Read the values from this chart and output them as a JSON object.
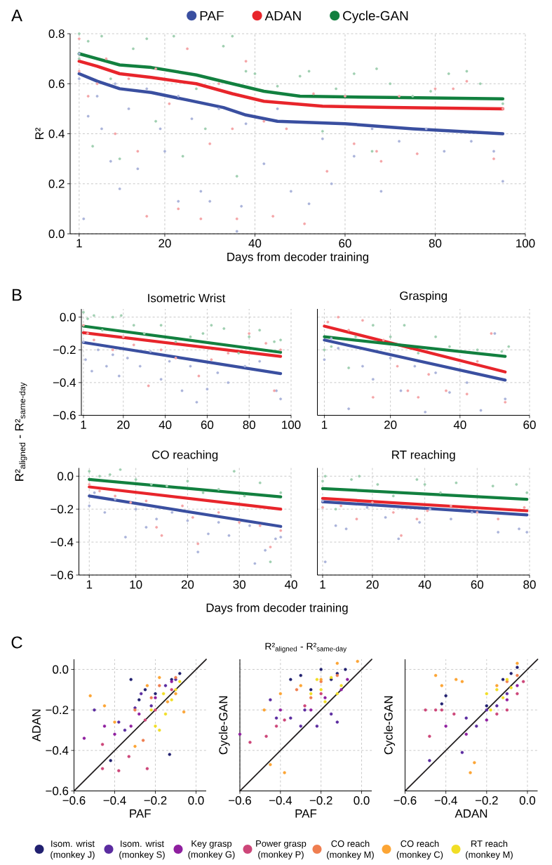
{
  "chart_data": [
    {
      "type": "line",
      "xlabel": "Days from decoder training",
      "ylabel": "R²",
      "annotations": [
        "A"
      ],
      "xlim": [
        -1,
        100
      ],
      "ylim": [
        0,
        0.8
      ],
      "xticks": [
        1,
        20,
        40,
        60,
        80,
        100
      ],
      "yticks": [
        {
          "value": 0,
          "label": "0.0"
        },
        0.2,
        0.4,
        0.6,
        0.8
      ],
      "grid": true,
      "legend": "top",
      "series": [
        {
          "type": "scatter",
          "color": "#aab3da",
          "x": [
            1,
            1,
            2,
            3,
            5,
            6,
            8,
            9,
            10,
            12,
            14,
            16,
            19,
            20,
            23,
            23,
            26,
            28,
            30,
            32,
            36,
            37,
            38,
            42,
            45,
            48,
            52,
            55,
            57,
            62,
            66,
            68,
            72,
            78,
            82,
            88,
            93,
            95
          ],
          "values": [
            0.72,
            0.62,
            0.06,
            0.47,
            0.55,
            0.42,
            0.29,
            0.6,
            0.18,
            0.5,
            0.26,
            0.58,
            0.42,
            0.33,
            0.13,
            0.55,
            0.46,
            0.17,
            0.13,
            0.5,
            0.01,
            0.11,
            0.44,
            0.28,
            0.5,
            0.17,
            0.12,
            0.38,
            0.2,
            0.31,
            0.42,
            0.17,
            0.37,
            0.42,
            0.33,
            0.37,
            0.33,
            0.21
          ]
        },
        {
          "type": "scatter",
          "color": "#f4a4a6",
          "x": [
            1,
            1,
            3,
            5,
            7,
            9,
            12,
            14,
            16,
            18,
            21,
            23,
            25,
            28,
            30,
            32,
            35,
            36,
            38,
            42,
            44,
            47,
            51,
            53,
            56,
            60,
            62,
            67,
            68,
            72,
            76,
            80,
            84,
            87,
            93,
            95
          ],
          "values": [
            0.78,
            0.65,
            0.55,
            0.6,
            0.7,
            0.4,
            0.62,
            0.33,
            0.07,
            0.66,
            0.52,
            0.1,
            0.74,
            0.06,
            0.36,
            0.6,
            0.42,
            0.06,
            0.69,
            0.45,
            0.07,
            0.42,
            0.04,
            0.56,
            0.25,
            0.55,
            0.36,
            0.33,
            0.29,
            0.55,
            0.32,
            0.58,
            0.58,
            0.61,
            0.3,
            0.5
          ]
        },
        {
          "type": "scatter",
          "color": "#9fcfb0",
          "x": [
            1,
            1,
            3,
            4,
            6,
            8,
            10,
            13,
            16,
            18,
            22,
            24,
            27,
            29,
            33,
            35,
            36,
            38,
            40,
            45,
            50,
            52,
            55,
            58,
            62,
            66,
            67,
            70,
            75,
            79,
            83,
            87,
            90,
            95
          ],
          "values": [
            0.8,
            0.7,
            0.77,
            0.35,
            0.79,
            0.62,
            0.3,
            0.74,
            0.78,
            0.45,
            0.79,
            0.31,
            0.58,
            0.42,
            0.75,
            0.79,
            0.23,
            0.65,
            0.64,
            0.59,
            0.63,
            0.65,
            0.41,
            0.58,
            0.64,
            0.33,
            0.66,
            0.6,
            0.55,
            0.57,
            0.64,
            0.65,
            0.6,
            0.52
          ]
        },
        {
          "type": "line",
          "name": "PAF",
          "color": "#3a4fa0",
          "x": [
            1,
            5,
            10,
            17,
            25,
            33,
            38,
            45,
            60,
            75,
            95
          ],
          "values": [
            0.64,
            0.61,
            0.58,
            0.565,
            0.535,
            0.505,
            0.475,
            0.45,
            0.44,
            0.42,
            0.4
          ]
        },
        {
          "type": "line",
          "name": "ADAN",
          "color": "#e8252b",
          "x": [
            1,
            5,
            10,
            17,
            27,
            35,
            42,
            55,
            70,
            95
          ],
          "values": [
            0.69,
            0.67,
            0.64,
            0.625,
            0.6,
            0.56,
            0.53,
            0.51,
            0.505,
            0.5
          ]
        },
        {
          "type": "line",
          "name": "Cycle-GAN",
          "color": "#12803f",
          "x": [
            1,
            5,
            10,
            17,
            27,
            35,
            42,
            50,
            70,
            95
          ],
          "values": [
            0.72,
            0.7,
            0.675,
            0.665,
            0.635,
            0.6,
            0.57,
            0.55,
            0.545,
            0.54
          ]
        }
      ]
    },
    {
      "type": "line",
      "title": "Isometric Wrist",
      "ylabel": "R²$_{aligned}$ - R²$_{same-day}$",
      "annotations": [
        "B"
      ],
      "xlim": [
        0,
        100
      ],
      "ylim": [
        -0.6,
        0.05
      ],
      "xticks": [
        1,
        20,
        40,
        60,
        80,
        100
      ],
      "yticks": [
        {
          "value": -0.6,
          "label": "−0.6"
        },
        {
          "value": -0.4,
          "label": "−0.4"
        },
        {
          "value": -0.2,
          "label": "−0.2"
        },
        {
          "value": 0,
          "label": "0.0"
        }
      ],
      "grid": true,
      "series": [
        {
          "type": "scatter",
          "color": "#aab3da",
          "x": [
            1,
            2,
            5,
            8,
            12,
            15,
            18,
            22,
            28,
            33,
            38,
            42,
            48,
            52,
            55,
            60,
            65,
            70,
            78,
            85,
            93,
            95
          ],
          "values": [
            -0.15,
            -0.26,
            -0.33,
            -0.2,
            -0.3,
            -0.23,
            -0.36,
            -0.25,
            -0.3,
            -0.21,
            -0.38,
            -0.27,
            -0.45,
            -0.3,
            -0.52,
            -0.44,
            -0.34,
            -0.4,
            -0.3,
            -0.27,
            -0.45,
            -0.5
          ]
        },
        {
          "type": "scatter",
          "color": "#f4a4a6",
          "x": [
            1,
            3,
            6,
            15,
            20,
            25,
            32,
            38,
            45,
            56,
            62,
            70,
            80,
            88,
            92,
            95
          ],
          "values": [
            -0.05,
            -0.1,
            -0.14,
            -0.2,
            -0.12,
            -0.17,
            -0.42,
            -0.2,
            -0.25,
            -0.36,
            -0.26,
            -0.22,
            -0.1,
            -0.16,
            -0.45,
            -0.2
          ]
        },
        {
          "type": "scatter",
          "color": "#9fcfb0",
          "x": [
            1,
            3,
            6,
            10,
            15,
            19,
            25,
            30,
            38,
            45,
            52,
            58,
            62,
            68,
            75,
            80,
            85,
            92,
            95
          ],
          "values": [
            0.03,
            -0.01,
            0.01,
            -0.08,
            0,
            0.01,
            -0.05,
            -0.1,
            -0.05,
            -0.15,
            -0.12,
            -0.1,
            -0.05,
            -0.07,
            -0.22,
            -0.12,
            -0.08,
            -0.15,
            -0.14
          ]
        },
        {
          "type": "line",
          "color": "#3a4fa0",
          "x": [
            1,
            95
          ],
          "values": [
            -0.155,
            -0.345
          ]
        },
        {
          "type": "line",
          "color": "#e8252b",
          "x": [
            1,
            95
          ],
          "values": [
            -0.095,
            -0.24
          ]
        },
        {
          "type": "line",
          "color": "#12803f",
          "x": [
            1,
            95
          ],
          "values": [
            -0.055,
            -0.215
          ]
        }
      ]
    },
    {
      "type": "line",
      "title": "Grasping",
      "xlim": [
        -1,
        60
      ],
      "ylim": [
        -0.6,
        0.05
      ],
      "xticks": [
        1,
        20,
        40,
        60
      ],
      "yticks": [
        {
          "value": -0.6,
          "label": null
        },
        {
          "value": -0.4,
          "label": null
        },
        {
          "value": -0.2,
          "label": null
        },
        {
          "value": 0,
          "label": null
        }
      ],
      "grid": true,
      "tick_labels": "x",
      "series": [
        {
          "type": "scatter",
          "color": "#aab3da",
          "x": [
            1,
            3,
            5,
            8,
            12,
            15,
            20,
            23,
            27,
            30,
            33,
            37,
            42,
            46,
            50,
            53
          ],
          "values": [
            -0.26,
            -0.13,
            -0.19,
            -0.56,
            -0.3,
            -0.38,
            -0.25,
            -0.45,
            -0.3,
            -0.58,
            -0.34,
            -0.46,
            -0.4,
            -0.57,
            -0.1,
            -0.5
          ]
        },
        {
          "type": "scatter",
          "color": "#f4a4a6",
          "x": [
            2,
            5,
            8,
            12,
            15,
            18,
            22,
            25,
            28,
            31,
            36,
            42,
            45,
            49,
            53
          ],
          "values": [
            -0.03,
            0,
            -0.08,
            -0.02,
            -0.49,
            -0.14,
            -0.3,
            -0.45,
            -0.49,
            -0.35,
            -0.45,
            -0.47,
            -0.27,
            -0.1,
            -0.52
          ]
        },
        {
          "type": "scatter",
          "color": "#9fcfb0",
          "x": [
            1,
            3,
            8,
            10,
            15,
            20,
            24,
            28,
            33,
            37,
            45,
            52,
            54
          ],
          "values": [
            -0.2,
            -0.18,
            -0.31,
            -0.12,
            -0.05,
            -0.12,
            -0.05,
            -0.22,
            -0.12,
            -0.18,
            -0.2,
            -0.21,
            -0.18
          ]
        },
        {
          "type": "line",
          "color": "#3a4fa0",
          "x": [
            1,
            53
          ],
          "values": [
            -0.14,
            -0.385
          ]
        },
        {
          "type": "line",
          "color": "#e8252b",
          "x": [
            1,
            53
          ],
          "values": [
            -0.055,
            -0.335
          ]
        },
        {
          "type": "line",
          "color": "#12803f",
          "x": [
            1,
            53
          ],
          "values": [
            -0.12,
            -0.24
          ]
        }
      ]
    },
    {
      "type": "line",
      "title": "CO reaching",
      "xlabel": "Days from decoder training",
      "xlim": [
        -1,
        40
      ],
      "ylim": [
        -0.6,
        0.05
      ],
      "xticks": [
        1,
        10,
        20,
        30,
        40
      ],
      "yticks": [
        {
          "value": -0.6,
          "label": "−0.6"
        },
        {
          "value": -0.4,
          "label": "−0.4"
        },
        {
          "value": -0.2,
          "label": "−0.2"
        },
        {
          "value": 0,
          "label": "0.0"
        }
      ],
      "grid": true,
      "series": [
        {
          "type": "scatter",
          "color": "#aab3da",
          "x": [
            1,
            2,
            4,
            6,
            8,
            10,
            12,
            14,
            17,
            20,
            22,
            24,
            26,
            28,
            32,
            33,
            35,
            37,
            38
          ],
          "values": [
            -0.18,
            -0.1,
            -0.22,
            -0.14,
            -0.37,
            -0.2,
            -0.31,
            -0.26,
            -0.22,
            -0.27,
            -0.46,
            -0.35,
            -0.28,
            -0.36,
            -0.3,
            -0.53,
            -0.45,
            -0.38,
            -0.37
          ]
        },
        {
          "type": "scatter",
          "color": "#f4a4a6",
          "x": [
            1,
            3,
            6,
            9,
            12,
            14,
            15,
            19,
            21,
            22,
            26,
            30,
            34,
            36,
            38
          ],
          "values": [
            -0.05,
            -0.09,
            -0.12,
            -0.16,
            -0.15,
            -0.31,
            -0.36,
            -0.18,
            -0.25,
            -0.41,
            -0.22,
            -0.28,
            -0.3,
            -0.43,
            -0.33
          ]
        },
        {
          "type": "scatter",
          "color": "#9fcfb0",
          "x": [
            1,
            3,
            5,
            7,
            10,
            13,
            16,
            20,
            23,
            26,
            29,
            31,
            34,
            36,
            38
          ],
          "values": [
            0.03,
            0,
            0.01,
            0.04,
            -0.02,
            -0.05,
            -0.06,
            -0.03,
            -0.1,
            -0.08,
            0.03,
            -0.12,
            -0.04,
            -0.52,
            -0.1
          ]
        },
        {
          "type": "line",
          "color": "#3a4fa0",
          "x": [
            1,
            38
          ],
          "values": [
            -0.12,
            -0.305
          ]
        },
        {
          "type": "line",
          "color": "#e8252b",
          "x": [
            1,
            38
          ],
          "values": [
            -0.065,
            -0.2
          ]
        },
        {
          "type": "line",
          "color": "#12803f",
          "x": [
            1,
            38
          ],
          "values": [
            -0.02,
            -0.125
          ]
        }
      ]
    },
    {
      "type": "line",
      "title": "RT reaching",
      "xlim": [
        -1,
        80
      ],
      "ylim": [
        -0.6,
        0.05
      ],
      "xticks": [
        1,
        20,
        40,
        60,
        80
      ],
      "yticks": [
        {
          "value": -0.6,
          "label": null
        },
        {
          "value": -0.4,
          "label": null
        },
        {
          "value": -0.2,
          "label": null
        },
        {
          "value": 0,
          "label": null
        }
      ],
      "grid": true,
      "tick_labels": "x",
      "series": [
        {
          "type": "scatter",
          "color": "#aab3da",
          "x": [
            1,
            2,
            6,
            10,
            18,
            25,
            30,
            38,
            42,
            50,
            58,
            68,
            76,
            79
          ],
          "values": [
            -0.15,
            -0.52,
            -0.3,
            -0.32,
            -0.19,
            -0.25,
            -0.38,
            -0.28,
            -0.2,
            -0.26,
            -0.22,
            -0.34,
            -0.32,
            -0.34
          ]
        },
        {
          "type": "scatter",
          "color": "#f4a4a6",
          "x": [
            1,
            8,
            14,
            20,
            28,
            31,
            37,
            41,
            50,
            60,
            68,
            78
          ],
          "values": [
            -0.19,
            -0.18,
            -0.26,
            -0.16,
            -0.22,
            -0.36,
            -0.26,
            -0.21,
            -0.18,
            -0.22,
            -0.26,
            -0.19
          ]
        },
        {
          "type": "scatter",
          "color": "#9fcfb0",
          "x": [
            1,
            2,
            6,
            12,
            15,
            22,
            28,
            37,
            40,
            46,
            52,
            66,
            75,
            79
          ],
          "values": [
            -0.03,
            0,
            -0.2,
            -0.02,
            0,
            -0.05,
            -0.12,
            -0.02,
            -0.05,
            -0.1,
            -0.04,
            -0.06,
            -0.05,
            -0.1
          ]
        },
        {
          "type": "line",
          "color": "#3a4fa0",
          "x": [
            1,
            79
          ],
          "values": [
            -0.155,
            -0.235
          ]
        },
        {
          "type": "line",
          "color": "#e8252b",
          "x": [
            1,
            79
          ],
          "values": [
            -0.135,
            -0.21
          ]
        },
        {
          "type": "line",
          "color": "#12803f",
          "x": [
            1,
            79
          ],
          "values": [
            -0.075,
            -0.14
          ]
        }
      ]
    },
    {
      "type": "scatter",
      "xlabel": "PAF",
      "ylabel": "ADAN",
      "annotations": [
        "C"
      ],
      "xlim": [
        -0.6,
        0.05
      ],
      "ylim": [
        -0.6,
        0.05
      ],
      "xticks": [
        {
          "value": -0.6,
          "label": "−0.6"
        },
        {
          "value": -0.4,
          "label": "−0.4"
        },
        {
          "value": -0.2,
          "label": "−0.2"
        },
        {
          "value": 0,
          "label": "0.0"
        }
      ],
      "yticks": [
        {
          "value": -0.6,
          "label": "−0.6"
        },
        {
          "value": -0.4,
          "label": "−0.4"
        },
        {
          "value": -0.2,
          "label": "−0.2"
        },
        {
          "value": 0,
          "label": "0.0"
        }
      ],
      "grid": true,
      "series": [
        {
          "color": "#212070",
          "x": [
            -0.32,
            -0.2,
            -0.12,
            -0.28,
            -0.13,
            -0.42,
            -0.08,
            -0.25
          ],
          "values": [
            -0.05,
            -0.12,
            -0.05,
            -0.15,
            -0.42,
            -0.45,
            -0.02,
            -0.1
          ]
        },
        {
          "color": "#5b2ca0",
          "x": [
            -0.5,
            -0.38,
            -0.3,
            -0.22,
            -0.15,
            -0.35,
            -0.1,
            -0.27
          ],
          "values": [
            -0.2,
            -0.26,
            -0.19,
            -0.18,
            -0.08,
            -0.3,
            -0.05,
            -0.12
          ]
        },
        {
          "color": "#8f1f9f",
          "x": [
            -0.55,
            -0.45,
            -0.32,
            -0.2,
            -0.12,
            -0.4,
            -0.28
          ],
          "values": [
            -0.34,
            -0.28,
            -0.28,
            -0.14,
            -0.06,
            -0.32,
            -0.22
          ]
        },
        {
          "color": "#cd4679",
          "x": [
            -0.46,
            -0.38,
            -0.24,
            -0.33,
            -0.46,
            -0.2,
            -0.12,
            -0.25
          ],
          "values": [
            -0.49,
            -0.5,
            -0.49,
            -0.43,
            -0.37,
            -0.2,
            -0.1,
            -0.25
          ]
        },
        {
          "color": "#ef7e50",
          "x": [
            -0.26,
            -0.3,
            -0.18,
            -0.1,
            -0.22
          ],
          "values": [
            -0.35,
            -0.2,
            -0.08,
            -0.04,
            -0.14
          ]
        },
        {
          "color": "#fca535",
          "x": [
            -0.52,
            -0.45,
            -0.3,
            -0.18,
            -0.1,
            -0.06,
            -0.24,
            -0.14,
            -0.4
          ],
          "values": [
            -0.13,
            -0.18,
            -0.38,
            -0.04,
            -0.12,
            -0.21,
            -0.08,
            -0.16,
            -0.26
          ]
        },
        {
          "color": "#f1de26",
          "x": [
            -0.2,
            -0.18,
            -0.15,
            -0.1,
            -0.22,
            -0.12,
            -0.08,
            -0.16
          ],
          "values": [
            -0.28,
            -0.3,
            -0.22,
            -0.1,
            -0.2,
            -0.15,
            -0.06,
            -0.12
          ]
        },
        {
          "type": "line",
          "color": "#231f20",
          "x": [
            -0.6,
            0.05
          ],
          "values": [
            -0.6,
            0.05
          ]
        }
      ]
    },
    {
      "type": "scatter",
      "title": "R²$_{aligned}$ - R²$_{same-day}$",
      "xlabel": "PAF",
      "ylabel": "Cycle-GAN",
      "xlim": [
        -0.6,
        0.05
      ],
      "ylim": [
        -0.6,
        0.05
      ],
      "xticks": [
        {
          "value": -0.6,
          "label": "−0.6"
        },
        {
          "value": -0.4,
          "label": "−0.4"
        },
        {
          "value": -0.2,
          "label": "−0.2"
        },
        {
          "value": 0,
          "label": "0.0"
        }
      ],
      "yticks": [
        {
          "value": -0.6,
          "label": null
        },
        {
          "value": -0.4,
          "label": null
        },
        {
          "value": -0.2,
          "label": null
        },
        {
          "value": 0,
          "label": null
        }
      ],
      "grid": true,
      "tick_labels": "x",
      "legend": "bottom",
      "series": [
        {
          "name": "Isom. wrist (monkey J)",
          "color": "#212070",
          "x": [
            -0.3,
            -0.2,
            -0.08,
            -0.25,
            -0.15,
            -0.12,
            -0.35
          ],
          "values": [
            -0.03,
            0,
            0,
            -0.1,
            -0.05,
            -0.02,
            -0.05
          ]
        },
        {
          "name": "Isom. wrist (monkey S)",
          "color": "#5b2ca0",
          "x": [
            -0.35,
            -0.28,
            -0.22,
            -0.15,
            -0.3,
            -0.45,
            -0.12,
            -0.42
          ],
          "values": [
            -0.24,
            -0.2,
            -0.28,
            -0.22,
            -0.28,
            -0.15,
            -0.26,
            -0.24
          ]
        },
        {
          "name": "Key grasp (monkey G)",
          "color": "#8f1f9f",
          "x": [
            -0.6,
            -0.4,
            -0.25,
            -0.18,
            -0.1,
            -0.07
          ],
          "values": [
            -0.32,
            -0.2,
            -0.2,
            -0.14,
            -0.1,
            -0.05
          ]
        },
        {
          "name": "Power grasp (monkey P)",
          "color": "#cd4679",
          "x": [
            -0.55,
            -0.47,
            -0.38,
            -0.28,
            -0.2,
            -0.42
          ],
          "values": [
            -0.36,
            -0.33,
            -0.25,
            -0.18,
            -0.12,
            -0.28
          ]
        },
        {
          "name": "CO reach (monkey M)",
          "color": "#ef7e50",
          "x": [
            -0.32,
            -0.2,
            -0.12,
            -0.25
          ],
          "values": [
            -0.1,
            -0.06,
            -0.03,
            -0.14
          ]
        },
        {
          "name": "CO reach (monkey C)",
          "color": "#fca535",
          "x": [
            -0.45,
            -0.38,
            -0.4,
            -0.3,
            -0.12,
            -0.02,
            -0.48,
            -0.2
          ],
          "values": [
            -0.47,
            -0.51,
            -0.12,
            -0.08,
            0.03,
            0.04,
            -0.2,
            -0.05
          ]
        },
        {
          "name": "RT reach (monkey M)",
          "color": "#f1de26",
          "x": [
            -0.25,
            -0.2,
            -0.15,
            -0.1,
            -0.18,
            -0.12,
            -0.22
          ],
          "values": [
            -0.12,
            -0.1,
            -0.04,
            -0.08,
            -0.16,
            -0.12,
            -0.05
          ]
        },
        {
          "type": "line",
          "color": "#231f20",
          "x": [
            -0.6,
            0.05
          ],
          "values": [
            -0.6,
            0.05
          ]
        }
      ]
    },
    {
      "type": "scatter",
      "xlabel": "ADAN",
      "ylabel": "Cycle-GAN",
      "xlim": [
        -0.6,
        0.05
      ],
      "ylim": [
        -0.6,
        0.05
      ],
      "xticks": [
        {
          "value": -0.6,
          "label": "−0.6"
        },
        {
          "value": -0.4,
          "label": "−0.4"
        },
        {
          "value": -0.2,
          "label": "−0.2"
        },
        {
          "value": 0,
          "label": "0.0"
        }
      ],
      "yticks": [
        {
          "value": -0.6,
          "label": null
        },
        {
          "value": -0.4,
          "label": null
        },
        {
          "value": -0.2,
          "label": null
        },
        {
          "value": 0,
          "label": null
        }
      ],
      "grid": true,
      "tick_labels": "x",
      "series": [
        {
          "color": "#212070",
          "x": [
            -0.42,
            -0.4,
            -0.05,
            -0.12,
            -0.2,
            -0.08
          ],
          "values": [
            -0.17,
            -0.13,
            0.01,
            -0.05,
            -0.18,
            -0.02
          ]
        },
        {
          "color": "#5b2ca0",
          "x": [
            -0.3,
            -0.25,
            -0.2,
            -0.15,
            -0.32,
            -0.48,
            -0.1
          ],
          "values": [
            -0.24,
            -0.28,
            -0.2,
            -0.18,
            -0.41,
            -0.45,
            -0.12
          ]
        },
        {
          "color": "#8f1f9f",
          "x": [
            -0.3,
            -0.2,
            -0.1,
            -0.05,
            -0.4
          ],
          "values": [
            -0.32,
            -0.25,
            -0.15,
            -0.08,
            -0.28
          ]
        },
        {
          "color": "#cd4679",
          "x": [
            -0.5,
            -0.45,
            -0.42,
            -0.36,
            -0.48,
            -0.1,
            -0.05,
            -0.02,
            -0.15
          ],
          "values": [
            -0.2,
            -0.2,
            -0.2,
            -0.22,
            -0.33,
            -0.2,
            -0.12,
            -0.06,
            -0.22
          ]
        },
        {
          "color": "#ef7e50",
          "x": [
            -0.1,
            -0.05
          ],
          "values": [
            -0.06,
            -0.03
          ]
        },
        {
          "color": "#fca535",
          "x": [
            -0.45,
            -0.42,
            -0.35,
            -0.32,
            -0.26,
            -0.28,
            -0.05,
            -0.15
          ],
          "values": [
            -0.03,
            -0.08,
            -0.05,
            -0.06,
            -0.46,
            -0.51,
            0.03,
            -0.08
          ]
        },
        {
          "color": "#f1de26",
          "x": [
            -0.2,
            -0.15,
            -0.1,
            -0.18,
            -0.08,
            -0.12
          ],
          "values": [
            -0.12,
            -0.1,
            -0.05,
            -0.2,
            -0.09,
            -0.14
          ]
        },
        {
          "type": "line",
          "color": "#231f20",
          "x": [
            -0.6,
            0.05
          ],
          "values": [
            -0.6,
            0.05
          ]
        }
      ]
    }
  ]
}
